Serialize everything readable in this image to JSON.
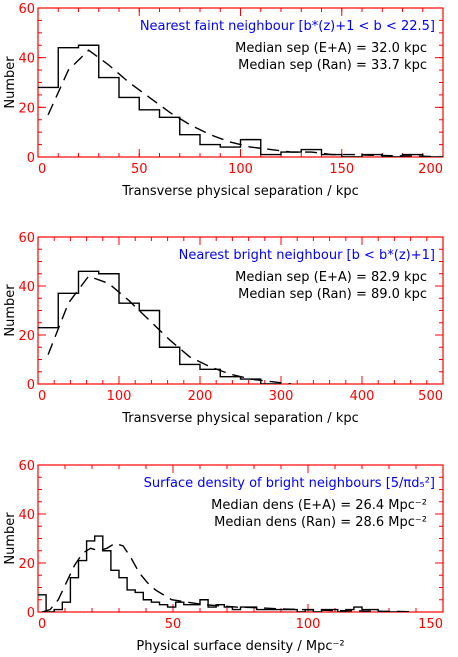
{
  "colors": {
    "axis": "#ff0000",
    "title": "#0000ff",
    "text": "#000000"
  },
  "chart_data": [
    {
      "type": "step",
      "title": "Nearest faint neighbour [b*(z)+1 < b < 22.5]",
      "xlabel": "Transverse physical separation / kpc",
      "ylabel": "Number",
      "xlim": [
        0,
        200
      ],
      "ylim": [
        0,
        60
      ],
      "xticks": [
        "0",
        "50",
        "100",
        "150",
        "200"
      ],
      "yticks": [
        "0",
        "20",
        "40",
        "60"
      ],
      "annotations": [
        "Median sep (E+A) = 32.0 kpc",
        "Median sep (Ran) = 33.7 kpc"
      ],
      "series": [
        {
          "style": "histogram",
          "bin_width": 10,
          "x": [
            0,
            10,
            20,
            30,
            40,
            50,
            60,
            70,
            80,
            90,
            100,
            110,
            120,
            130,
            140,
            150,
            160,
            170,
            180,
            190
          ],
          "values": [
            28,
            44,
            45,
            32,
            24,
            19,
            16,
            9,
            5,
            4,
            7,
            1,
            2,
            3,
            1,
            0,
            1,
            0,
            1,
            0
          ]
        },
        {
          "style": "dashed",
          "x": [
            5,
            15,
            25,
            35,
            45,
            55,
            65,
            75,
            85,
            95,
            105,
            115,
            125,
            135,
            145,
            155,
            165,
            175,
            185,
            195
          ],
          "values": [
            17,
            35,
            43,
            37,
            30,
            24,
            18,
            13,
            9,
            6,
            4,
            3,
            2,
            2,
            1,
            1,
            0.7,
            0.5,
            0.4,
            0.2
          ]
        }
      ]
    },
    {
      "type": "step",
      "title": "Nearest bright neighbour [b < b*(z)+1]",
      "xlabel": "Transverse physical separation / kpc",
      "ylabel": "Number",
      "xlim": [
        0,
        500
      ],
      "ylim": [
        0,
        60
      ],
      "xticks": [
        "0",
        "100",
        "200",
        "300",
        "400",
        "500"
      ],
      "yticks": [
        "0",
        "20",
        "40",
        "60"
      ],
      "annotations": [
        "Median sep (E+A) = 82.9 kpc",
        "Median sep (Ran) = 89.0 kpc"
      ],
      "series": [
        {
          "style": "histogram",
          "bin_width": 25,
          "x": [
            0,
            25,
            50,
            75,
            100,
            125,
            150,
            175,
            200,
            225,
            250,
            275
          ],
          "values": [
            23,
            37,
            46,
            45,
            33,
            30,
            15,
            8,
            6,
            3,
            2,
            0
          ]
        },
        {
          "style": "dashed",
          "x": [
            12.5,
            37.5,
            62.5,
            87.5,
            112.5,
            137.5,
            162.5,
            187.5,
            212.5,
            237.5,
            262.5,
            287.5,
            312.5
          ],
          "values": [
            12,
            33,
            44,
            41,
            34,
            26,
            18,
            11,
            7,
            4,
            2,
            1,
            0
          ]
        }
      ]
    },
    {
      "type": "step",
      "title": "Surface density of bright neighbours [5/πd₅²]",
      "xlabel": "Physical surface density / Mpc⁻²",
      "ylabel": "Number",
      "xlim": [
        0,
        150
      ],
      "ylim": [
        0,
        60
      ],
      "xticks": [
        "0",
        "50",
        "100",
        "150"
      ],
      "yticks": [
        "0",
        "20",
        "40",
        "60"
      ],
      "annotations": [
        "Median dens (E+A) = 26.4 Mpc⁻²",
        "Median dens (Ran) = 28.6 Mpc⁻²"
      ],
      "series": [
        {
          "style": "histogram",
          "bin_width": 3,
          "x": [
            0,
            3,
            6,
            9,
            12,
            15,
            18,
            21,
            24,
            27,
            30,
            33,
            36,
            39,
            42,
            45,
            48,
            51,
            54,
            57,
            60,
            63,
            66,
            69,
            72,
            75,
            78,
            81,
            84,
            87,
            90,
            93,
            96,
            99,
            102,
            105,
            108,
            111,
            114,
            117,
            120,
            123,
            126,
            129,
            132
          ],
          "values": [
            7,
            0,
            1,
            4,
            14,
            21,
            29,
            31,
            25,
            17,
            14,
            9,
            8,
            5,
            4,
            3,
            2,
            4,
            3,
            3,
            5,
            2,
            3,
            2,
            1,
            2,
            2,
            1,
            1,
            1,
            1,
            1,
            0,
            1,
            0,
            1,
            1,
            0,
            1,
            2,
            1,
            1,
            0,
            0,
            0
          ]
        },
        {
          "style": "dashed",
          "x": [
            1.5,
            4.5,
            7.5,
            10.5,
            13.5,
            16.5,
            19.5,
            22.5,
            25.5,
            28.5,
            31.5,
            34.5,
            37.5,
            40.5,
            43.5,
            46.5,
            49.5,
            55.5,
            61.5,
            67.5,
            73.5,
            79.5,
            85.5,
            91.5,
            97.5,
            103.5,
            109.5,
            115.5,
            121.5,
            127.5,
            133.5,
            139.5
          ],
          "values": [
            0,
            1,
            5,
            12,
            19,
            24,
            26,
            25,
            26,
            28,
            27,
            22,
            16,
            12,
            9,
            7,
            5,
            4,
            3,
            2.5,
            2,
            1.8,
            1.5,
            1.2,
            1,
            0.8,
            0.6,
            0.5,
            0.4,
            0.3,
            0.2,
            0.1
          ]
        }
      ]
    }
  ]
}
